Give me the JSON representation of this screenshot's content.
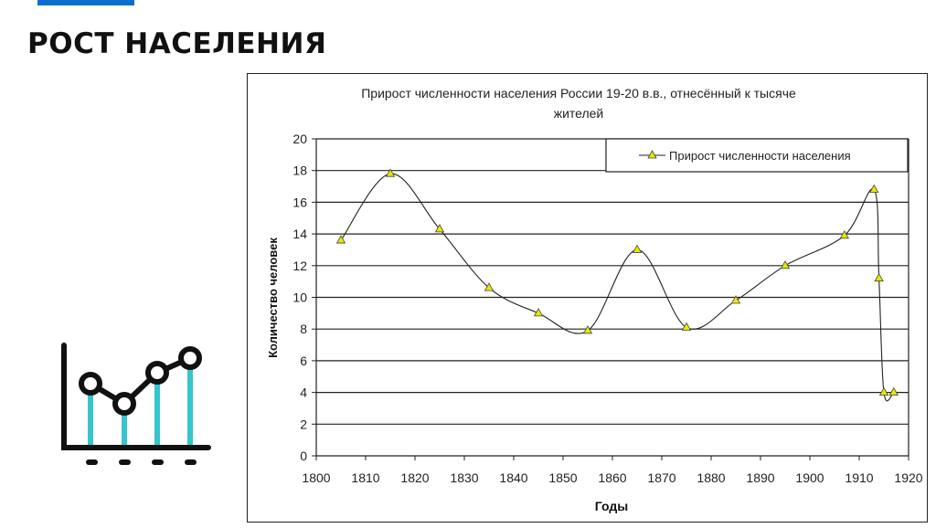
{
  "slide": {
    "title": "РОСТ НАСЕЛЕНИЯ",
    "accent_color": "#0a6fcc",
    "icon": "line-chart-icon",
    "icon_accent_color": "#35c5cc"
  },
  "chart_data": {
    "type": "line",
    "title": "Прирост численности населения России 19-20 в.в., отнесённый к тысяче жителей",
    "title_lines": [
      "Прирост численности населения России 19-20 в.в., отнесённый к тысяче",
      "жителей"
    ],
    "xlabel": "Годы",
    "ylabel": "Количество человек",
    "xlim": [
      1800,
      1920
    ],
    "ylim": [
      0,
      20
    ],
    "x_ticks": [
      1800,
      1810,
      1820,
      1830,
      1840,
      1850,
      1860,
      1870,
      1880,
      1890,
      1900,
      1910,
      1920
    ],
    "y_ticks": [
      0,
      2,
      4,
      6,
      8,
      10,
      12,
      14,
      16,
      18,
      20
    ],
    "grid": "horizontal",
    "legend_position": "top-right inside plot",
    "smooth": true,
    "marker": "triangle",
    "marker_color": "#e8e800",
    "line_color": "#222222",
    "series": [
      {
        "name": "Прирост численности населения",
        "x": [
          1805,
          1815,
          1825,
          1835,
          1845,
          1855,
          1865,
          1875,
          1885,
          1895,
          1907,
          1913,
          1914,
          1915,
          1917
        ],
        "values": [
          13.6,
          17.8,
          14.3,
          10.6,
          9.0,
          7.9,
          13.0,
          8.1,
          9.8,
          12.0,
          13.9,
          16.8,
          11.2,
          4.0,
          4.0
        ]
      }
    ]
  }
}
